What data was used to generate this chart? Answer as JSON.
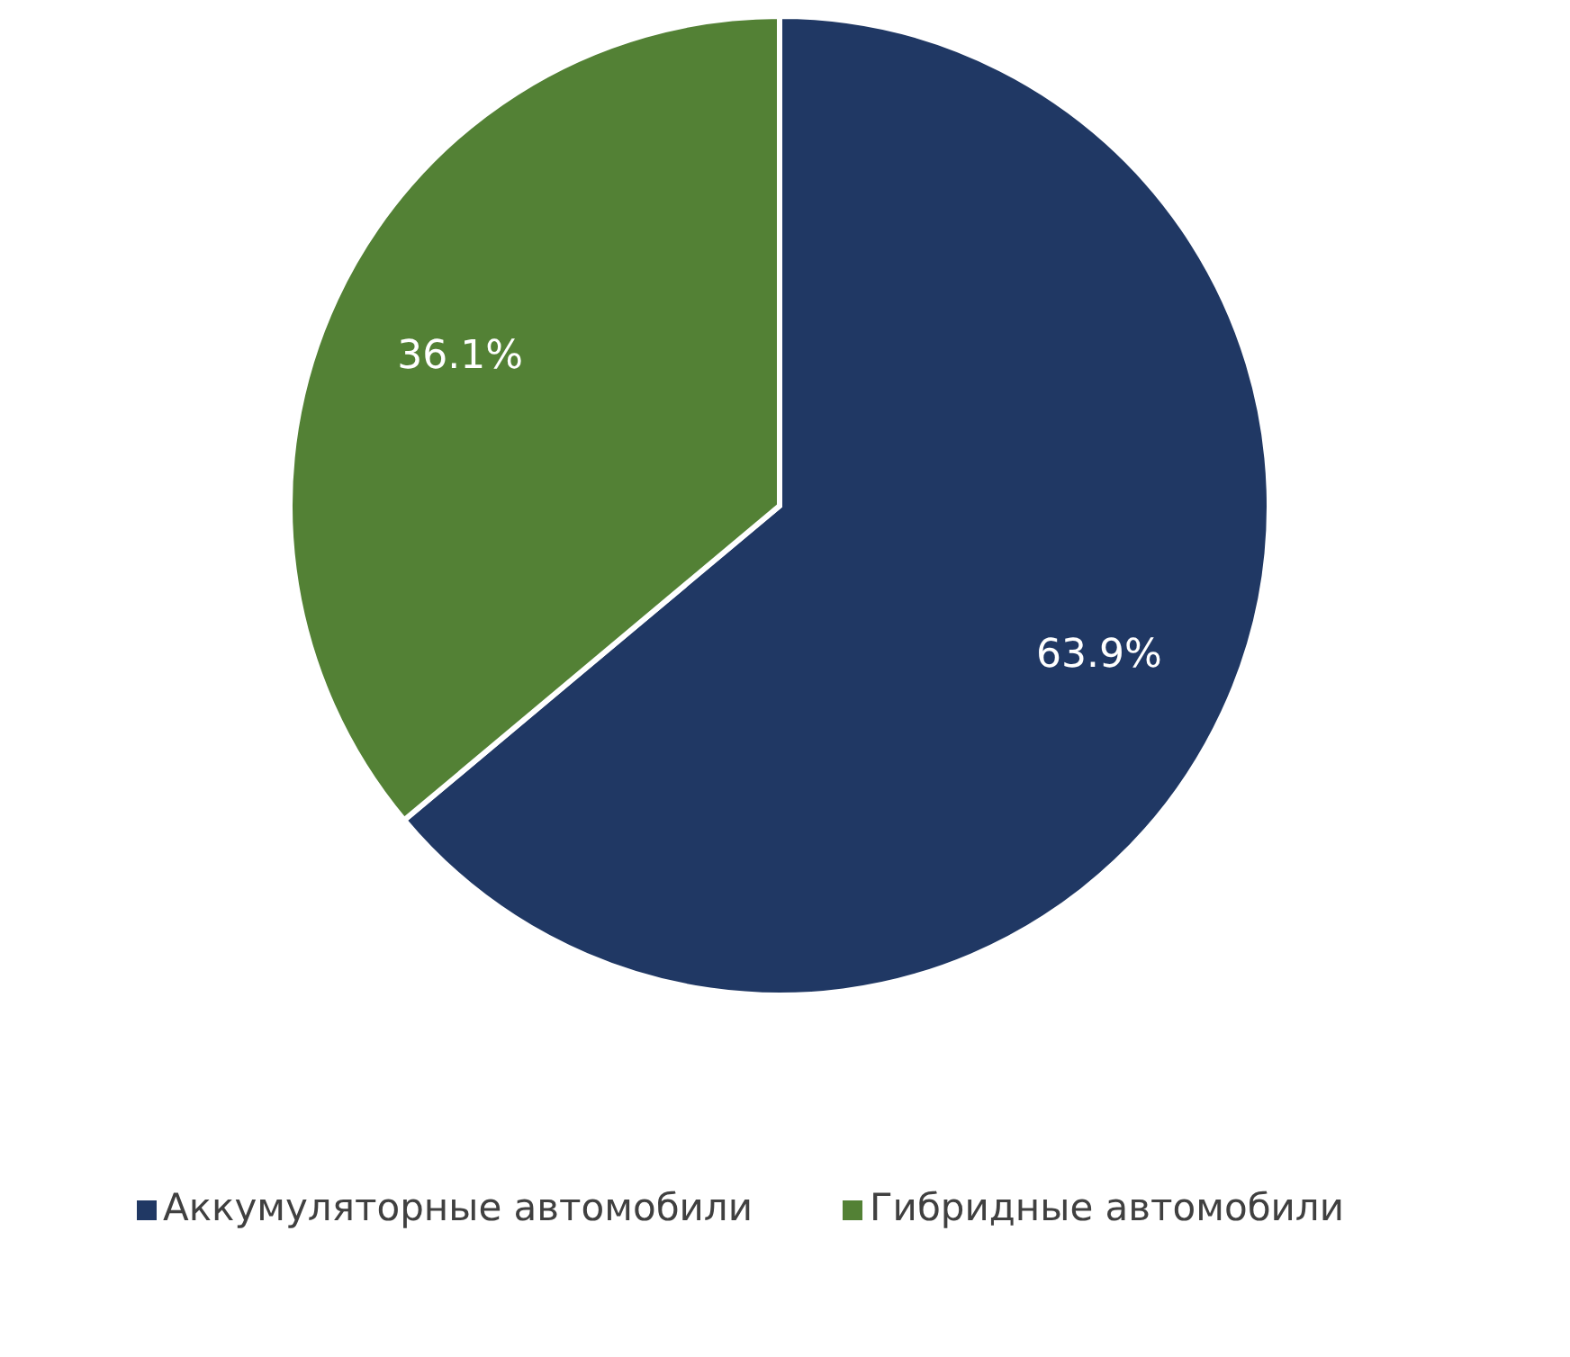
{
  "chart_data": {
    "type": "pie",
    "categories": [
      "Аккумуляторные автомобили",
      "Гибридные автомобили"
    ],
    "values": [
      63.9,
      36.1
    ],
    "colors": [
      "#203864",
      "#538135"
    ],
    "value_labels": [
      "63.9%",
      "36.1%"
    ],
    "legend": "bottom"
  }
}
